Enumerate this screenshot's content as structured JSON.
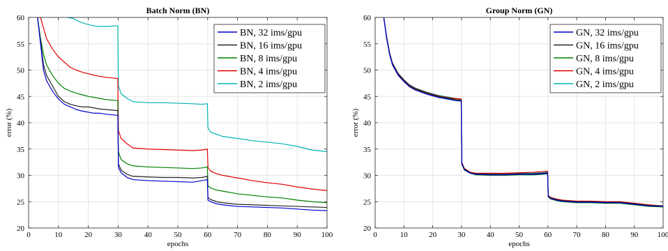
{
  "chart_data": [
    {
      "type": "line",
      "title": "Batch Norm (BN)",
      "xlabel": "epochs",
      "ylabel": "error (%)",
      "xlim": [
        0,
        100
      ],
      "ylim": [
        20,
        60
      ],
      "xticks": [
        "0",
        "10",
        "20",
        "30",
        "40",
        "50",
        "60",
        "70",
        "80",
        "90",
        "100"
      ],
      "yticks": [
        "20",
        "25",
        "30",
        "35",
        "40",
        "45",
        "50",
        "55",
        "60"
      ],
      "grid": true,
      "legend_position": "top-right",
      "series": [
        {
          "name": "BN, 32 ims/gpu",
          "color": "#0000cc",
          "x": [
            3,
            4,
            5,
            6,
            8,
            10,
            12,
            14,
            16,
            18,
            20,
            22,
            24,
            26,
            28,
            29.9,
            30.1,
            31,
            33,
            35,
            40,
            45,
            50,
            55,
            58,
            59.9,
            60.1,
            61,
            63,
            65,
            70,
            75,
            80,
            85,
            90,
            95,
            100
          ],
          "y": [
            60,
            55,
            50,
            48,
            46,
            44.5,
            43.5,
            43,
            42.5,
            42.2,
            42,
            41.8,
            41.8,
            41.6,
            41.5,
            41.4,
            31.5,
            30.5,
            29.6,
            29.2,
            29,
            28.9,
            28.8,
            28.7,
            29,
            29.2,
            25.3,
            25,
            24.6,
            24.4,
            24.1,
            24,
            23.9,
            23.8,
            23.6,
            23.4,
            23.3
          ]
        },
        {
          "name": "BN, 16 ims/gpu",
          "color": "#222222",
          "x": [
            3,
            4,
            5,
            6,
            8,
            10,
            12,
            14,
            16,
            18,
            20,
            22,
            24,
            26,
            28,
            29.9,
            30.1,
            31,
            33,
            35,
            40,
            45,
            50,
            55,
            58,
            59.9,
            60.1,
            61,
            63,
            65,
            70,
            75,
            80,
            85,
            90,
            95,
            100
          ],
          "y": [
            60,
            55.5,
            51,
            49,
            47,
            45,
            44,
            43.5,
            43.2,
            43,
            43,
            42.8,
            42.6,
            42.5,
            42.4,
            42.3,
            32.2,
            31,
            30.2,
            29.8,
            29.7,
            29.6,
            29.6,
            29.5,
            29.6,
            29.8,
            25.8,
            25.4,
            25,
            24.8,
            24.5,
            24.4,
            24.3,
            24.2,
            24.1,
            24,
            23.9
          ]
        },
        {
          "name": "BN, 8 ims/gpu",
          "color": "#008000",
          "x": [
            3,
            4,
            5,
            6,
            8,
            10,
            12,
            14,
            16,
            18,
            20,
            22,
            24,
            26,
            28,
            29.9,
            30.1,
            31,
            33,
            35,
            40,
            45,
            50,
            55,
            58,
            59.9,
            60.1,
            61,
            63,
            65,
            70,
            75,
            80,
            85,
            90,
            95,
            100
          ],
          "y": [
            60,
            56,
            53,
            51,
            49,
            47.5,
            46.5,
            46,
            45.6,
            45.3,
            45,
            44.8,
            44.6,
            44.4,
            44.3,
            44.2,
            34.5,
            33,
            32.2,
            31.8,
            31.6,
            31.5,
            31.4,
            31.3,
            31.4,
            31.6,
            28,
            27.6,
            27.2,
            27,
            26.5,
            26.2,
            25.9,
            25.7,
            25.3,
            25,
            24.8
          ]
        },
        {
          "name": "BN, 4 ims/gpu",
          "color": "#e00000",
          "x": [
            3,
            4,
            5,
            6,
            8,
            10,
            12,
            14,
            16,
            18,
            20,
            22,
            24,
            26,
            28,
            29.9,
            30.1,
            31,
            33,
            35,
            40,
            45,
            50,
            55,
            58,
            59.9,
            60.1,
            61,
            63,
            65,
            70,
            75,
            80,
            85,
            90,
            95,
            100
          ],
          "y": [
            60,
            60,
            58,
            56,
            54,
            52.5,
            51.5,
            50.5,
            50,
            49.6,
            49.3,
            49,
            48.8,
            48.6,
            48.5,
            48.4,
            38.5,
            37,
            36,
            35.2,
            35,
            34.9,
            34.8,
            34.7,
            34.8,
            35,
            31.5,
            30.8,
            30.3,
            30,
            29.5,
            29,
            28.6,
            28.3,
            27.8,
            27.4,
            27.1
          ]
        },
        {
          "name": "BN, 2 ims/gpu",
          "color": "#00b3b3",
          "x": [
            13,
            15,
            17,
            19,
            21,
            23,
            25,
            27,
            29,
            29.9,
            30.1,
            31,
            33,
            35,
            40,
            45,
            50,
            55,
            58,
            59.9,
            60.1,
            61,
            63,
            65,
            70,
            75,
            80,
            85,
            90,
            95,
            100
          ],
          "y": [
            60,
            59.8,
            59.2,
            58.8,
            58.5,
            58.3,
            58.3,
            58.3,
            58.4,
            58.4,
            47,
            45.5,
            44.6,
            44,
            43.8,
            43.8,
            43.7,
            43.6,
            43.5,
            43.6,
            39,
            38.2,
            37.8,
            37.4,
            37,
            36.6,
            36.3,
            36,
            35.5,
            34.8,
            34.5
          ]
        }
      ]
    },
    {
      "type": "line",
      "title": "Group Norm (GN)",
      "xlabel": "epochs",
      "ylabel": "error (%)",
      "xlim": [
        0,
        100
      ],
      "ylim": [
        20,
        60
      ],
      "xticks": [
        "0",
        "10",
        "20",
        "30",
        "40",
        "50",
        "60",
        "70",
        "80",
        "90",
        "100"
      ],
      "yticks": [
        "20",
        "25",
        "30",
        "35",
        "40",
        "45",
        "50",
        "55",
        "60"
      ],
      "grid": true,
      "legend_position": "top-right",
      "series": [
        {
          "name": "GN, 32 ims/gpu",
          "color": "#0000cc",
          "x": [
            3,
            4,
            5,
            6,
            8,
            10,
            12,
            14,
            16,
            18,
            20,
            22,
            24,
            26,
            28,
            29.9,
            30.1,
            31,
            33,
            35,
            40,
            45,
            50,
            55,
            58,
            59.9,
            60.1,
            61,
            63,
            65,
            70,
            75,
            80,
            85,
            90,
            95,
            100
          ],
          "y": [
            60,
            56,
            53,
            51,
            49,
            47.8,
            46.8,
            46.2,
            45.8,
            45.4,
            45.1,
            44.8,
            44.6,
            44.4,
            44.2,
            44.1,
            32.2,
            31.1,
            30.4,
            30.2,
            30.1,
            30.1,
            30.2,
            30.2,
            30.3,
            30.4,
            26,
            25.6,
            25.3,
            25.1,
            24.9,
            24.9,
            24.8,
            24.8,
            24.5,
            24.2,
            24.1
          ]
        },
        {
          "name": "GN, 16 ims/gpu",
          "color": "#222222",
          "x": [
            3,
            4,
            5,
            6,
            8,
            10,
            12,
            14,
            16,
            18,
            20,
            22,
            24,
            26,
            28,
            29.9,
            30.1,
            31,
            33,
            35,
            40,
            45,
            50,
            55,
            58,
            59.9,
            60.1,
            61,
            63,
            65,
            70,
            75,
            80,
            85,
            90,
            95,
            100
          ],
          "y": [
            60,
            56.2,
            53.2,
            51.2,
            49.2,
            48,
            47,
            46.4,
            46,
            45.6,
            45.3,
            45,
            44.8,
            44.6,
            44.4,
            44.3,
            32.3,
            31.2,
            30.5,
            30.3,
            30.2,
            30.2,
            30.3,
            30.3,
            30.4,
            30.5,
            26.1,
            25.7,
            25.4,
            25.2,
            25,
            25,
            24.9,
            24.9,
            24.6,
            24.3,
            24.2
          ]
        },
        {
          "name": "GN, 8 ims/gpu",
          "color": "#008000",
          "x": [
            3,
            4,
            5,
            6,
            8,
            10,
            12,
            14,
            16,
            18,
            20,
            22,
            24,
            26,
            28,
            29.9,
            30.1,
            31,
            33,
            35,
            40,
            45,
            50,
            55,
            58,
            59.9,
            60.1,
            61,
            63,
            65,
            70,
            75,
            80,
            85,
            90,
            95,
            100
          ],
          "y": [
            60,
            56.1,
            53.1,
            51.1,
            49.1,
            47.9,
            46.9,
            46.3,
            45.9,
            45.5,
            45.2,
            44.9,
            44.7,
            44.5,
            44.3,
            44.2,
            32.1,
            31,
            30.4,
            30.1,
            30,
            30,
            30.1,
            30.1,
            30.2,
            30.3,
            25.9,
            25.5,
            25.2,
            25,
            24.8,
            24.8,
            24.7,
            24.7,
            24.4,
            24.1,
            24
          ]
        },
        {
          "name": "GN, 4 ims/gpu",
          "color": "#e00000",
          "x": [
            3,
            4,
            5,
            6,
            8,
            10,
            12,
            14,
            16,
            18,
            20,
            22,
            24,
            26,
            28,
            29.9,
            30.1,
            31,
            33,
            35,
            40,
            45,
            50,
            55,
            58,
            59.9,
            60.1,
            61,
            63,
            65,
            70,
            75,
            80,
            85,
            90,
            95,
            100
          ],
          "y": [
            60,
            56.3,
            53.3,
            51.3,
            49.3,
            48.1,
            47.1,
            46.5,
            46.1,
            45.7,
            45.4,
            45.1,
            44.9,
            44.7,
            44.6,
            44.5,
            32.5,
            31.3,
            30.6,
            30.4,
            30.4,
            30.4,
            30.5,
            30.6,
            30.7,
            30.8,
            26.2,
            25.8,
            25.5,
            25.3,
            25.1,
            25.1,
            25,
            25,
            24.7,
            24.4,
            24.2
          ]
        },
        {
          "name": "GN, 2 ims/gpu",
          "color": "#00b3b3",
          "x": [
            3,
            4,
            5,
            6,
            8,
            10,
            12,
            14,
            16,
            18,
            20,
            22,
            24,
            26,
            28,
            29.9,
            30.1,
            31,
            33,
            35,
            40,
            45,
            50,
            55,
            58,
            59.9,
            60.1,
            61,
            63,
            65,
            70,
            75,
            80,
            85,
            90,
            95,
            100
          ],
          "y": [
            60,
            56.4,
            53.4,
            51.4,
            49.4,
            48.2,
            47.2,
            46.6,
            46.2,
            45.8,
            45.5,
            45.2,
            45,
            44.8,
            44.6,
            44.5,
            32.4,
            31.2,
            30.5,
            30.3,
            30.3,
            30.3,
            30.4,
            30.4,
            30.5,
            30.6,
            26,
            25.6,
            25.3,
            25.1,
            24.9,
            24.9,
            24.8,
            24.8,
            24.5,
            24.2,
            24.1
          ]
        }
      ]
    }
  ]
}
